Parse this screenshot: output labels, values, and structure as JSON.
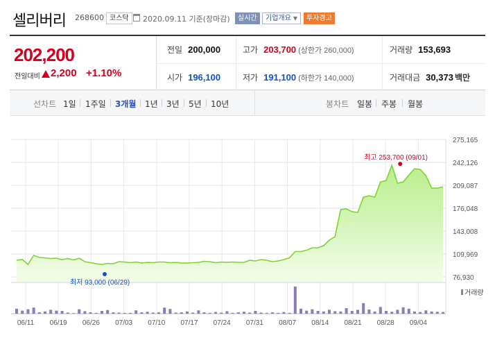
{
  "header": {
    "name": "셀리버리",
    "code": "268600",
    "market": "코스닥",
    "date_text": "2020.09.11  기준(장마감)",
    "realtime_btn": "실시간",
    "company_btn": "기업개요",
    "warning_btn": "투자경고"
  },
  "summary": {
    "price": "202,200",
    "change_label": "전일대비",
    "change_amount": "2,200",
    "change_pct": "+1.10%",
    "prev_close_label": "전일",
    "prev_close": "200,000",
    "high_label": "고가",
    "high": "203,700",
    "high_limit": "(상한가 260,000)",
    "volume_label": "거래량",
    "volume": "153,693",
    "open_label": "시가",
    "open": "196,100",
    "low_label": "저가",
    "low": "191,100",
    "low_limit": "(하한가 140,000)",
    "amount_label": "거래대금",
    "amount": "30,373",
    "amount_unit": "백만"
  },
  "periods": {
    "line_label": "선차트",
    "items": [
      "1일",
      "1주일",
      "3개월",
      "1년",
      "3년",
      "5년",
      "10년"
    ],
    "selected": "3개월",
    "candle_label": "봉차트",
    "candle_items": [
      "일봉",
      "주봉",
      "월봉"
    ]
  },
  "chart_data": {
    "type": "area",
    "y_ticks": [
      "275,165",
      "242,126",
      "209,087",
      "176,048",
      "143,008",
      "109,969",
      "76,930"
    ],
    "ylim": [
      76930,
      275165
    ],
    "x_ticks": [
      "06/11",
      "06/19",
      "06/26",
      "07/03",
      "07/10",
      "07/17",
      "07/24",
      "07/31",
      "08/07",
      "08/14",
      "08/21",
      "08/28",
      "09/04"
    ],
    "high_annotation": "최고 253,700 (09/01)",
    "low_annotation": "최저 93,000 (06/29)",
    "volume_legend": "거래량",
    "line_color": "#7cd42e",
    "fill_color": "#d8f5bf",
    "prices": [
      101000,
      102000,
      95000,
      108000,
      105000,
      104500,
      103500,
      104000,
      102000,
      103500,
      101500,
      104000,
      99000,
      97500,
      96000,
      95000,
      96500,
      96000,
      99000,
      98500,
      97500,
      98500,
      97000,
      98000,
      97500,
      98500,
      98500,
      97500,
      98000,
      97000,
      97000,
      97500,
      98000,
      99500,
      99000,
      97500,
      98500,
      98000,
      98500,
      98000,
      98000,
      101000,
      100000,
      102000,
      101000,
      99000,
      100000,
      102000,
      104500,
      113500,
      113500,
      115500,
      119000,
      119000,
      122000,
      130000,
      135000,
      174000,
      175000,
      171000,
      170000,
      192000,
      194000,
      192000,
      214000,
      216000,
      238000,
      212000,
      214000,
      224000,
      233000,
      232000,
      223000,
      205000,
      205000,
      207000
    ],
    "volumes": [
      0.18,
      0.11,
      0.16,
      0.22,
      0.05,
      0.08,
      0.14,
      0.11,
      0.1,
      0.04,
      0.02,
      0.16,
      0.09,
      0.05,
      0.03,
      0.1,
      0.13,
      0.05,
      0.04,
      0.03,
      0.03,
      0.12,
      0.05,
      0.07,
      0.04,
      0.05,
      0.22,
      0.17,
      0.04,
      0.05,
      0.08,
      0.04,
      0.12,
      0.05,
      0.03,
      0.06,
      0.04,
      0.09,
      0.03,
      0.05,
      0.07,
      0.04,
      0.1,
      0.04,
      0.03,
      0.05,
      0.03,
      0.06,
      0.03,
      0.98,
      0.18,
      0.11,
      0.16,
      0.1,
      0.08,
      0.14,
      0.09,
      0.08,
      0.2,
      0.1,
      0.14,
      0.38,
      0.15,
      0.08,
      0.24,
      0.1,
      0.07,
      0.14,
      0.23,
      0.18,
      0.08,
      0.06,
      0.12,
      0.08,
      0.07,
      0.06
    ],
    "high_index": 66,
    "low_index": 15
  }
}
